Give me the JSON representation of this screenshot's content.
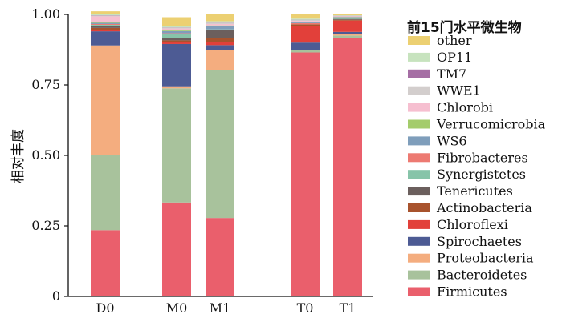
{
  "chart_data": {
    "type": "bar",
    "stacked": true,
    "title": "",
    "xlabel": "",
    "ylabel": "相对丰度",
    "ylim": [
      0,
      1.0
    ],
    "yticks": [
      "0",
      "0.25",
      "0.50",
      "0.75",
      "1.00"
    ],
    "categories": [
      "D0",
      "M0",
      "M1",
      "T0",
      "T1"
    ],
    "legend": {
      "title": "前15门水平微生物",
      "position": "right"
    },
    "series": [
      {
        "name": "Firmicutes",
        "color": "#ea5f6c",
        "values": [
          0.235,
          0.333,
          0.278,
          0.865,
          0.915
        ]
      },
      {
        "name": "Bacteroidetes",
        "color": "#a8c29c",
        "values": [
          0.265,
          0.405,
          0.525,
          0.01,
          0.01
        ]
      },
      {
        "name": "Proteobacteria",
        "color": "#f4ad7f",
        "values": [
          0.39,
          0.007,
          0.07,
          0.0,
          0.005
        ]
      },
      {
        "name": "Spirochaetes",
        "color": "#4d5b94",
        "values": [
          0.05,
          0.15,
          0.018,
          0.025,
          0.008
        ]
      },
      {
        "name": "Chloroflexi",
        "color": "#e2403a",
        "values": [
          0.005,
          0.007,
          0.012,
          0.06,
          0.04
        ]
      },
      {
        "name": "Actinobacteria",
        "color": "#a8532d",
        "values": [
          0.007,
          0.006,
          0.012,
          0.005,
          0.003
        ]
      },
      {
        "name": "Tenericutes",
        "color": "#6b5f5d",
        "values": [
          0.008,
          0.009,
          0.03,
          0.0,
          0.003
        ]
      },
      {
        "name": "Synergistetes",
        "color": "#87c4a9",
        "values": [
          0.003,
          0.014,
          0.002,
          0.0,
          0.002
        ]
      },
      {
        "name": "Fibrobacteres",
        "color": "#ed7a72",
        "values": [
          0.003,
          0.002,
          0.0,
          0.004,
          0.002
        ]
      },
      {
        "name": "WS6",
        "color": "#7f9ebb",
        "values": [
          0.004,
          0.008,
          0.012,
          0.003,
          0.002
        ]
      },
      {
        "name": "Verrucomicrobia",
        "color": "#a4cc6b",
        "values": [
          0.003,
          0.004,
          0.002,
          0.002,
          0.001
        ]
      },
      {
        "name": "Chlorobi",
        "color": "#f6bfd0",
        "values": [
          0.02,
          0.005,
          0.005,
          0.003,
          0.002
        ]
      },
      {
        "name": "WWE1",
        "color": "#d3cecd",
        "values": [
          0.003,
          0.003,
          0.004,
          0.003,
          0.001
        ]
      },
      {
        "name": "TM7",
        "color": "#a56ea4",
        "values": [
          0.001,
          0.001,
          0.001,
          0.001,
          0.001
        ]
      },
      {
        "name": "OP11",
        "color": "#c7e3be",
        "values": [
          0.003,
          0.006,
          0.005,
          0.004,
          0.002
        ]
      },
      {
        "name": "other",
        "color": "#ecd072",
        "values": [
          0.011,
          0.03,
          0.024,
          0.015,
          0.003
        ]
      }
    ],
    "legend_order": [
      "other",
      "OP11",
      "TM7",
      "WWE1",
      "Chlorobi",
      "Verrucomicrobia",
      "WS6",
      "Fibrobacteres",
      "Synergistetes",
      "Tenericutes",
      "Actinobacteria",
      "Chloroflexi",
      "Spirochaetes",
      "Proteobacteria",
      "Bacteroidetes",
      "Firmicutes"
    ]
  }
}
